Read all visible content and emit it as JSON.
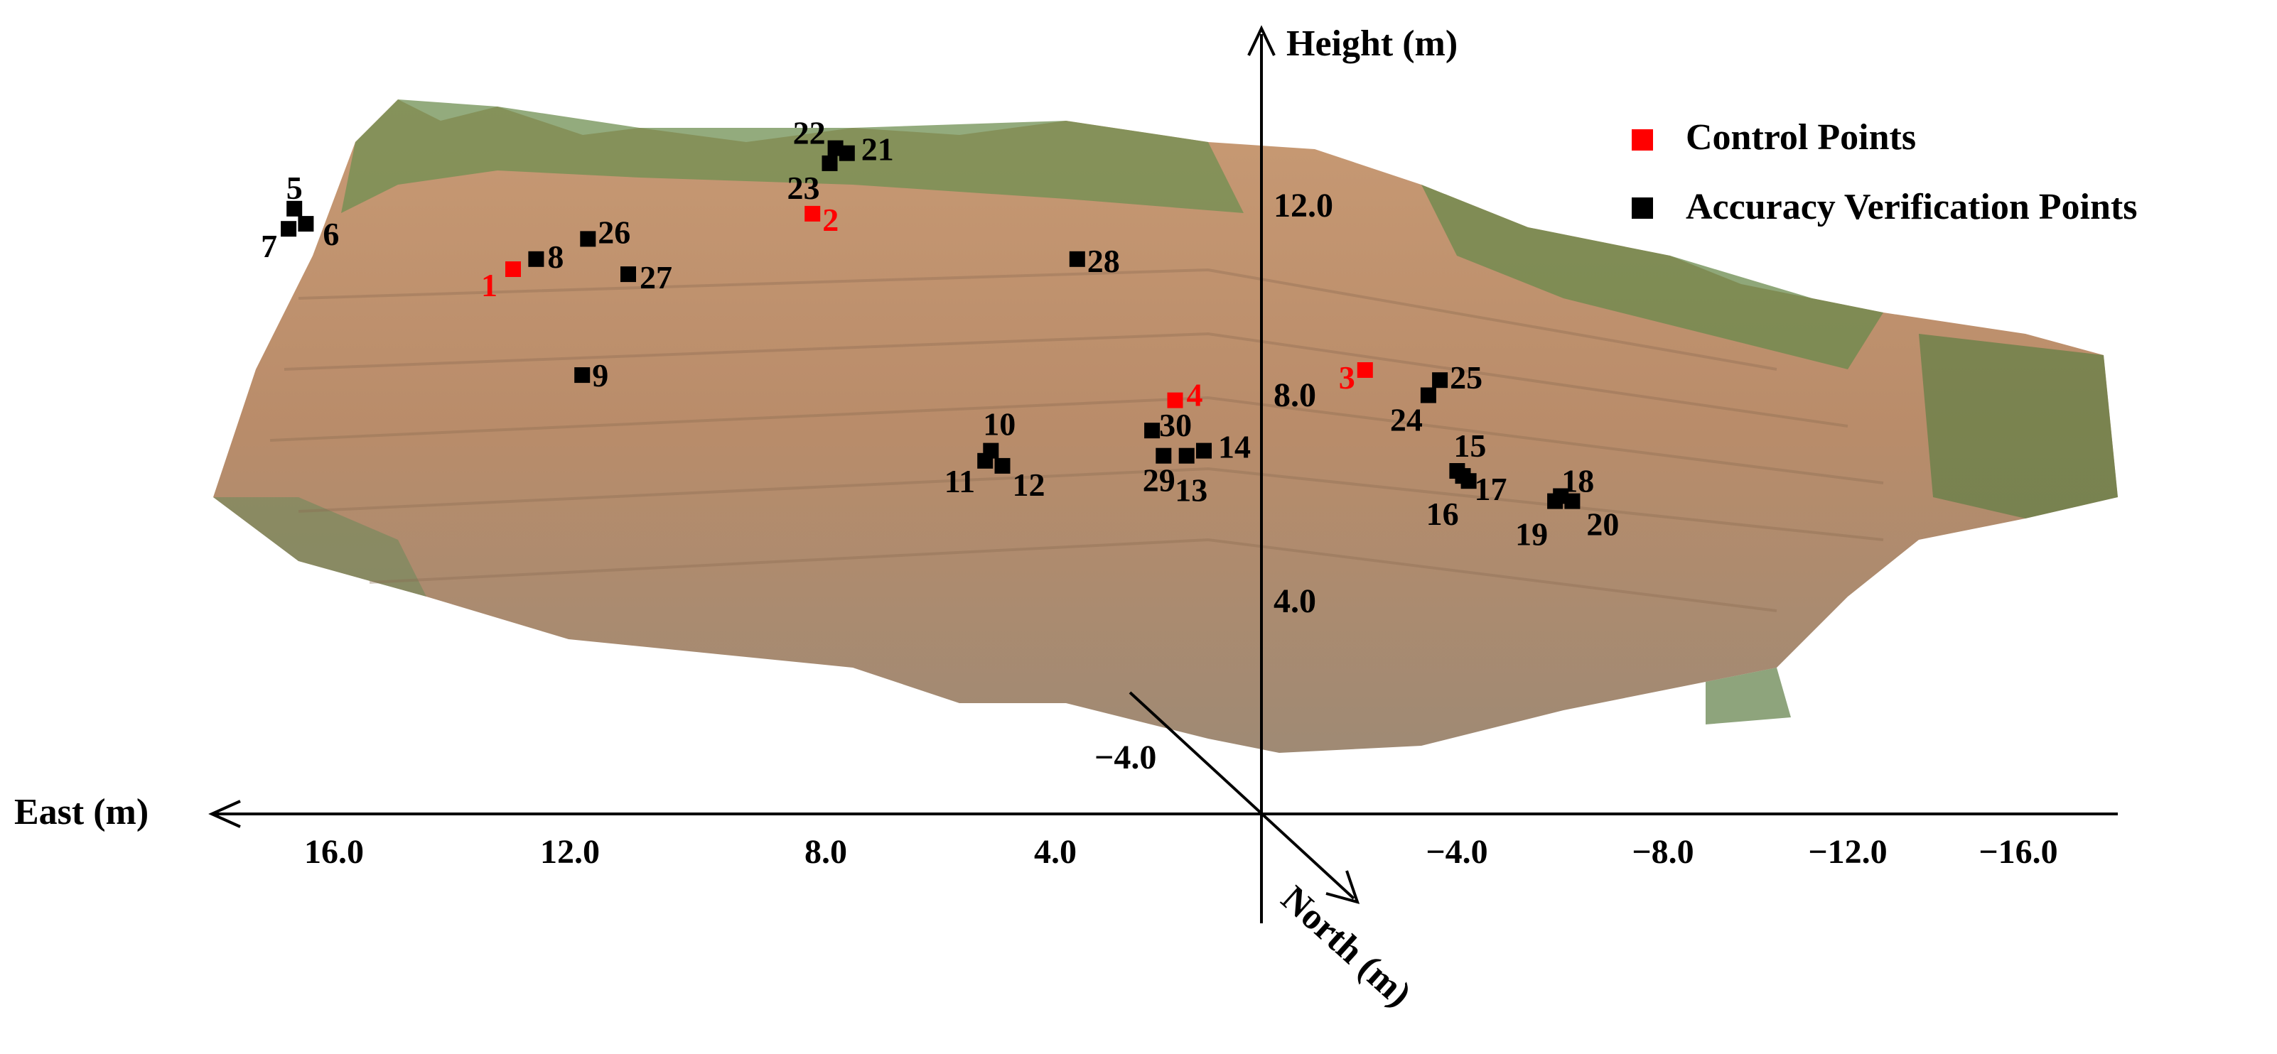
{
  "chart_data": {
    "type": "scatter",
    "title": "",
    "axes": {
      "height": {
        "label": "Height (m)",
        "ticks": [
          12.0,
          8.0,
          4.0
        ],
        "tick_labels": [
          "12.0",
          "8.0",
          "4.0"
        ]
      },
      "east": {
        "label": "East (m)",
        "ticks": [
          16.0,
          12.0,
          8.0,
          4.0,
          -4.0,
          -8.0,
          -12.0,
          -16.0
        ],
        "tick_labels": [
          "16.0",
          "12.0",
          "8.0",
          "4.0",
          "−4.0",
          "−8.0",
          "−12.0",
          "−16.0"
        ]
      },
      "north": {
        "label": "North (m)",
        "ticks": [
          -4.0
        ],
        "tick_labels": [
          "−4.0"
        ]
      }
    },
    "legend": {
      "placement": "top-right",
      "entries": [
        {
          "name": "Control Points",
          "color": "#ff0000"
        },
        {
          "name": "Accuracy Verification Points",
          "color": "#000000"
        }
      ]
    },
    "series": [
      {
        "name": "Control Points",
        "color": "#ff0000",
        "points": [
          {
            "id": "1",
            "east": 13.0,
            "height": 7.0
          },
          {
            "id": "2",
            "east": 7.8,
            "height": 8.1
          },
          {
            "id": "3",
            "east": -1.8,
            "height": 5.0
          },
          {
            "id": "4",
            "east": 1.5,
            "height": 4.4
          }
        ]
      },
      {
        "name": "Accuracy Verification Points",
        "color": "#000000",
        "points": [
          {
            "id": "5",
            "east": 16.8,
            "height": 8.2
          },
          {
            "id": "6",
            "east": 16.6,
            "height": 7.9
          },
          {
            "id": "7",
            "east": 16.9,
            "height": 7.8
          },
          {
            "id": "8",
            "east": 12.6,
            "height": 7.2
          },
          {
            "id": "9",
            "east": 11.8,
            "height": 4.9
          },
          {
            "id": "10",
            "east": 4.7,
            "height": 3.4
          },
          {
            "id": "11",
            "east": 4.8,
            "height": 3.2
          },
          {
            "id": "12",
            "east": 4.5,
            "height": 3.1
          },
          {
            "id": "13",
            "east": 1.7,
            "height": 3.3
          },
          {
            "id": "14",
            "east": 1.0,
            "height": 3.4
          },
          {
            "id": "15",
            "east": -3.4,
            "height": 3.0
          },
          {
            "id": "16",
            "east": -3.6,
            "height": 2.8
          },
          {
            "id": "17",
            "east": -3.5,
            "height": 2.9
          },
          {
            "id": "18",
            "east": -5.2,
            "height": 2.5
          },
          {
            "id": "19",
            "east": -5.1,
            "height": 2.4
          },
          {
            "id": "20",
            "east": -5.4,
            "height": 2.4
          },
          {
            "id": "21",
            "east": 7.2,
            "height": 9.3
          },
          {
            "id": "22",
            "east": 7.4,
            "height": 9.4
          },
          {
            "id": "23",
            "east": 7.5,
            "height": 9.1
          },
          {
            "id": "24",
            "east": -2.9,
            "height": 4.5
          },
          {
            "id": "25",
            "east": -3.1,
            "height": 4.8
          },
          {
            "id": "26",
            "east": 11.7,
            "height": 7.6
          },
          {
            "id": "27",
            "east": 11.0,
            "height": 6.9
          },
          {
            "id": "28",
            "east": 3.2,
            "height": 7.2
          },
          {
            "id": "29",
            "east": 1.3,
            "height": 3.3
          },
          {
            "id": "30",
            "east": 1.9,
            "height": 3.8
          }
        ]
      }
    ]
  }
}
